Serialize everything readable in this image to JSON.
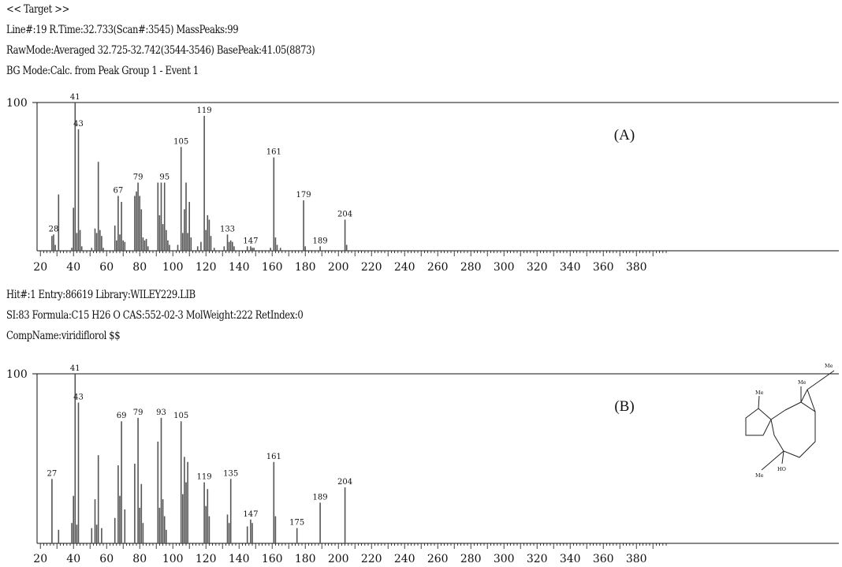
{
  "header_a": {
    "line1": "<< Target >>",
    "line2": "Line#:19  R.Time:32.733(Scan#:3545)  MassPeaks:99",
    "line3": "RawMode:Averaged 32.725-32.742(3544-3546) BasePeak:41.05(8873)",
    "line4": "BG Mode:Calc. from Peak  Group 1 - Event 1"
  },
  "header_b": {
    "line1": "Hit#:1  Entry:86619  Library:WILEY229.LIB",
    "line2": "SI:83  Formula:C15 H26 O  CAS:552-02-3  MolWeight:222  RetIndex:0",
    "line3": "CompName:viridiflorol $$"
  },
  "structure": {
    "labels": [
      "Me",
      "Me",
      "Me",
      "HO",
      "Me"
    ]
  },
  "chart_data": [
    {
      "type": "bar",
      "panel_label": "(A)",
      "ylim": [
        0,
        100
      ],
      "y_tick_labels": [
        "100"
      ],
      "xlim": [
        18,
        400
      ],
      "x_tick_labels": [
        "20",
        "40",
        "60",
        "80",
        "100",
        "120",
        "140",
        "160",
        "180",
        "200",
        "220",
        "240",
        "260",
        "280",
        "300",
        "320",
        "340",
        "360",
        "380"
      ],
      "x": [
        27,
        28,
        29,
        31,
        39,
        40,
        41,
        42,
        43,
        44,
        45,
        51,
        53,
        54,
        55,
        56,
        57,
        58,
        65,
        66,
        67,
        68,
        69,
        70,
        71,
        77,
        78,
        79,
        80,
        81,
        82,
        83,
        84,
        85,
        91,
        92,
        93,
        94,
        95,
        96,
        97,
        98,
        103,
        105,
        106,
        107,
        108,
        109,
        110,
        111,
        115,
        117,
        119,
        120,
        121,
        122,
        123,
        125,
        131,
        133,
        134,
        135,
        136,
        137,
        145,
        147,
        148,
        149,
        159,
        161,
        162,
        163,
        165,
        179,
        180,
        189,
        204,
        205
      ],
      "y": [
        10,
        11,
        4,
        38,
        2,
        29,
        100,
        12,
        82,
        14,
        3,
        2,
        15,
        12,
        60,
        14,
        10,
        2,
        17,
        7,
        37,
        11,
        33,
        7,
        6,
        37,
        40,
        46,
        37,
        28,
        9,
        7,
        8,
        3,
        46,
        24,
        46,
        18,
        46,
        14,
        7,
        4,
        4,
        70,
        12,
        28,
        46,
        12,
        33,
        9,
        3,
        6,
        91,
        14,
        24,
        21,
        10,
        2,
        3,
        11,
        6,
        7,
        6,
        3,
        3,
        3,
        2,
        2,
        2,
        63,
        9,
        4,
        2,
        34,
        3,
        3,
        21,
        4
      ],
      "labels": [
        {
          "x": 28,
          "text": "28"
        },
        {
          "x": 41,
          "text": "41"
        },
        {
          "x": 43,
          "text": "43"
        },
        {
          "x": 67,
          "text": "67"
        },
        {
          "x": 79,
          "text": "79"
        },
        {
          "x": 95,
          "text": "95"
        },
        {
          "x": 105,
          "text": "105"
        },
        {
          "x": 119,
          "text": "119"
        },
        {
          "x": 133,
          "text": "133"
        },
        {
          "x": 147,
          "text": "147"
        },
        {
          "x": 161,
          "text": "161"
        },
        {
          "x": 179,
          "text": "179"
        },
        {
          "x": 189,
          "text": "189"
        },
        {
          "x": 204,
          "text": "204"
        }
      ]
    },
    {
      "type": "bar",
      "panel_label": "(B)",
      "ylim": [
        0,
        100
      ],
      "y_tick_labels": [
        "100"
      ],
      "xlim": [
        18,
        400
      ],
      "x_tick_labels": [
        "20",
        "40",
        "60",
        "80",
        "100",
        "120",
        "140",
        "160",
        "180",
        "200",
        "220",
        "240",
        "260",
        "280",
        "300",
        "320",
        "340",
        "360",
        "380"
      ],
      "x": [
        27,
        31,
        39,
        40,
        41,
        42,
        43,
        51,
        53,
        54,
        55,
        57,
        65,
        67,
        68,
        69,
        71,
        77,
        79,
        80,
        81,
        82,
        91,
        92,
        93,
        94,
        95,
        96,
        105,
        106,
        107,
        108,
        109,
        119,
        120,
        121,
        122,
        133,
        134,
        135,
        145,
        147,
        148,
        161,
        162,
        175,
        189,
        204
      ],
      "y": [
        38,
        8,
        12,
        28,
        100,
        11,
        83,
        9,
        26,
        11,
        52,
        9,
        15,
        46,
        28,
        72,
        20,
        47,
        74,
        21,
        35,
        12,
        60,
        21,
        74,
        26,
        16,
        8,
        72,
        29,
        51,
        36,
        48,
        36,
        22,
        32,
        16,
        17,
        12,
        38,
        10,
        14,
        12,
        48,
        16,
        9,
        24,
        33
      ],
      "labels": [
        {
          "x": 27,
          "text": "27"
        },
        {
          "x": 41,
          "text": "41"
        },
        {
          "x": 43,
          "text": "43"
        },
        {
          "x": 69,
          "text": "69"
        },
        {
          "x": 79,
          "text": "79"
        },
        {
          "x": 93,
          "text": "93"
        },
        {
          "x": 105,
          "text": "105"
        },
        {
          "x": 119,
          "text": "119"
        },
        {
          "x": 135,
          "text": "135"
        },
        {
          "x": 147,
          "text": "147"
        },
        {
          "x": 161,
          "text": "161"
        },
        {
          "x": 175,
          "text": "175"
        },
        {
          "x": 189,
          "text": "189"
        },
        {
          "x": 204,
          "text": "204"
        }
      ]
    }
  ]
}
